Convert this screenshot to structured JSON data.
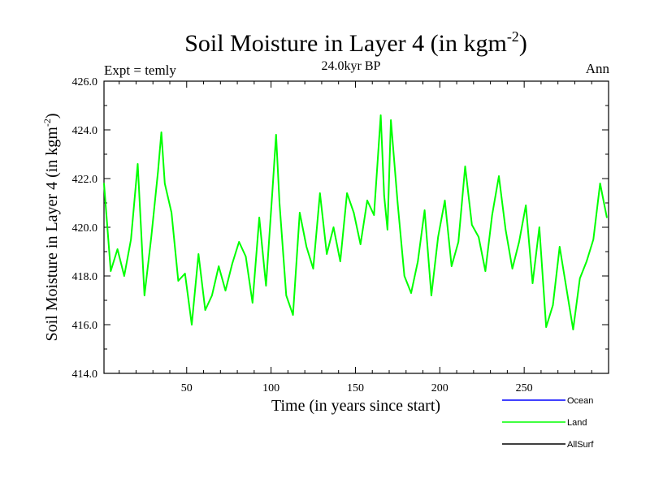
{
  "chart_data": {
    "type": "line",
    "title_main": "Soil Moisture in Layer 4 (in kgm",
    "title_sup": "-2",
    "title_close": ")",
    "subtitle": "24.0kyr BP",
    "left_note": "Expt = temly",
    "right_note": "Ann",
    "xlabel": "Time (in years since start)",
    "ylabel_main": "Soil Moisture in Layer 4 (in kgm",
    "ylabel_sup": "-2",
    "ylabel_close": ")",
    "xlim": [
      1,
      300
    ],
    "ylim": [
      414,
      426
    ],
    "xticks": [
      50,
      100,
      150,
      200,
      250
    ],
    "yticks": [
      414,
      416,
      418,
      420,
      422,
      424,
      426
    ],
    "ytick_labels": [
      "414.0",
      "416.0",
      "418.0",
      "420.0",
      "422.0",
      "424.0",
      "426.0"
    ],
    "xtick_labels": [
      "50",
      "100",
      "150",
      "200",
      "250"
    ],
    "legend": [
      {
        "name": "Ocean",
        "color": "#0000ff"
      },
      {
        "name": "Land",
        "color": "#00ff00"
      },
      {
        "name": "AllSurf",
        "color": "#000000"
      }
    ],
    "series": [
      {
        "name": "Land",
        "color": "#00ff00",
        "x": [
          1,
          5,
          9,
          13,
          17,
          21,
          25,
          29,
          33,
          35,
          37,
          41,
          45,
          49,
          53,
          57,
          61,
          65,
          69,
          73,
          77,
          81,
          85,
          89,
          93,
          97,
          101,
          103,
          105,
          109,
          113,
          117,
          121,
          125,
          129,
          133,
          137,
          141,
          145,
          149,
          153,
          157,
          161,
          165,
          167,
          169,
          171,
          175,
          179,
          183,
          187,
          191,
          195,
          199,
          203,
          207,
          211,
          215,
          219,
          223,
          227,
          231,
          235,
          239,
          243,
          247,
          251,
          255,
          259,
          263,
          267,
          271,
          275,
          279,
          283,
          287,
          291,
          295,
          299
        ],
        "values": [
          421.8,
          418.2,
          419.1,
          418.0,
          419.5,
          422.6,
          417.2,
          419.6,
          422.3,
          423.9,
          421.8,
          420.6,
          417.8,
          418.1,
          416.0,
          418.9,
          416.6,
          417.2,
          418.4,
          417.4,
          418.5,
          419.4,
          418.8,
          416.9,
          420.4,
          417.6,
          421.7,
          423.8,
          421.0,
          417.2,
          416.4,
          420.6,
          419.2,
          418.3,
          421.4,
          418.9,
          420.0,
          418.6,
          421.4,
          420.6,
          419.3,
          421.1,
          420.5,
          424.6,
          421.3,
          419.9,
          424.4,
          421.0,
          418.0,
          417.3,
          418.6,
          420.7,
          417.2,
          419.6,
          421.1,
          418.4,
          419.4,
          422.5,
          420.1,
          419.6,
          418.2,
          420.5,
          422.1,
          419.9,
          418.3,
          419.4,
          420.9,
          417.7,
          420.0,
          415.9,
          416.8,
          419.2,
          417.5,
          415.8,
          417.9,
          418.6,
          419.5,
          421.8,
          420.4
        ]
      }
    ]
  }
}
